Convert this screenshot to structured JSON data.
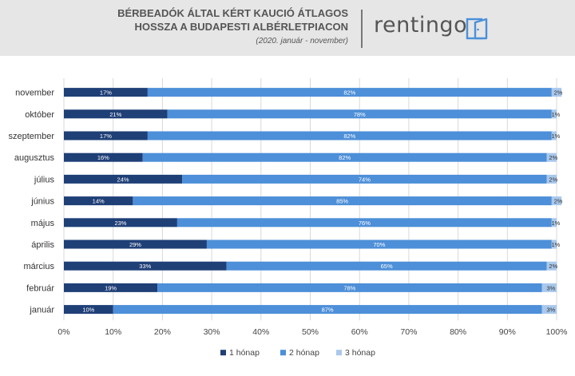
{
  "header": {
    "title_line1": "BÉRBEADÓK ÁLTAL KÉRT KAUCIÓ ÁTLAGOS",
    "title_line2": "HOSSZA A BUDAPESTI ALBÉRLETPIACON",
    "subtitle": "(2020. január - november)",
    "brand": "rentingo",
    "logo_icon": "open-door-icon"
  },
  "colors": {
    "series1": "#1f3f77",
    "series2": "#4d8fd8",
    "series3": "#a9c8ec",
    "header_bg": "#e6e6e6",
    "brand_blue": "#4a90d9"
  },
  "chart_data": {
    "type": "bar",
    "orientation": "horizontal",
    "stacked": true,
    "categories": [
      "november",
      "október",
      "szeptember",
      "augusztus",
      "július",
      "június",
      "május",
      "április",
      "március",
      "február",
      "január"
    ],
    "series": [
      {
        "name": "1 hónap",
        "values": [
          17,
          21,
          17,
          16,
          24,
          14,
          23,
          29,
          33,
          19,
          10
        ],
        "labels": [
          "17%",
          "21%",
          "17%",
          "16%",
          "24%",
          "14%",
          "23%",
          "29%",
          "33%",
          "19%",
          "10%"
        ]
      },
      {
        "name": "2 hónap",
        "values": [
          82,
          78,
          82,
          82,
          74,
          85,
          76,
          70,
          65,
          78,
          87
        ],
        "labels": [
          "82%",
          "78%",
          "82%",
          "82%",
          "74%",
          "85%",
          "76%",
          "70%",
          "65%",
          "78%",
          "87%"
        ]
      },
      {
        "name": "3 hónap",
        "values": [
          2,
          1,
          1,
          2,
          2,
          2,
          1,
          1,
          2,
          3,
          3
        ],
        "labels": [
          "2%",
          "1%",
          "1%",
          "2%",
          "2%",
          "2%",
          "1%",
          "1%",
          "2%",
          "3%",
          "3%"
        ]
      }
    ],
    "x_ticks": [
      "0%",
      "10%",
      "20%",
      "30%",
      "40%",
      "50%",
      "60%",
      "70%",
      "80%",
      "90%",
      "100%"
    ],
    "xlim": [
      0,
      100
    ],
    "grid": true,
    "legend_position": "bottom"
  }
}
